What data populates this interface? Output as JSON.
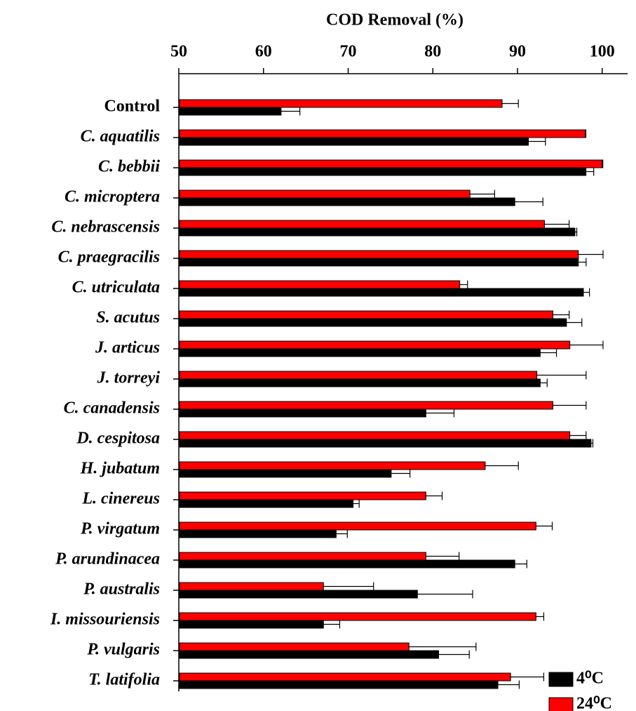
{
  "chart_data": {
    "type": "bar",
    "orientation": "horizontal",
    "title": "COD Removal (%)",
    "categories": [
      "Control",
      "C. aquatilis",
      "C. bebbii",
      "C. microptera",
      "C. nebrascensis",
      "C. praegracilis",
      "C. utriculata",
      "S. acutus",
      "J. articus",
      "J. torreyi",
      "C. canadensis",
      "D. cespitosa",
      "H. jubatum",
      "L. cinereus",
      "P. virgatum",
      "P. arundinacea",
      "P. australis",
      "I. missouriensis",
      "P. vulgaris",
      "T. latifolia"
    ],
    "series": [
      {
        "name": "4⁰C",
        "color": "#000000",
        "values": [
          62,
          91.2,
          98,
          89.6,
          96.7,
          97.1,
          97.7,
          95.7,
          92.6,
          92.6,
          79.1,
          98.6,
          75,
          70.5,
          68.5,
          89.6,
          78.1,
          67,
          80.6,
          87.6
        ],
        "errors": [
          2.3,
          2.1,
          1,
          3.4,
          0.3,
          1,
          0.8,
          1.9,
          2,
          0.9,
          3.4,
          0.3,
          2.3,
          0.8,
          1.4,
          1.5,
          6.6,
          2,
          3.7,
          2.6
        ]
      },
      {
        "name": "24⁰C",
        "color": "#ff0000",
        "values": [
          88.1,
          98,
          100,
          84.3,
          93.1,
          97.1,
          83.1,
          94.1,
          96.1,
          92.2,
          94.1,
          96.1,
          86.1,
          79.1,
          92.1,
          79.1,
          67,
          92.1,
          77.1,
          89.1
        ],
        "errors": [
          2,
          0,
          0,
          3,
          3,
          3,
          1,
          2,
          4,
          5.9,
          4,
          2,
          4,
          2,
          2,
          4,
          6,
          1,
          8,
          4
        ]
      }
    ],
    "xlim": [
      50,
      103
    ],
    "xticks": [
      50,
      60,
      70,
      80,
      90,
      100
    ],
    "legend": "lower right"
  }
}
